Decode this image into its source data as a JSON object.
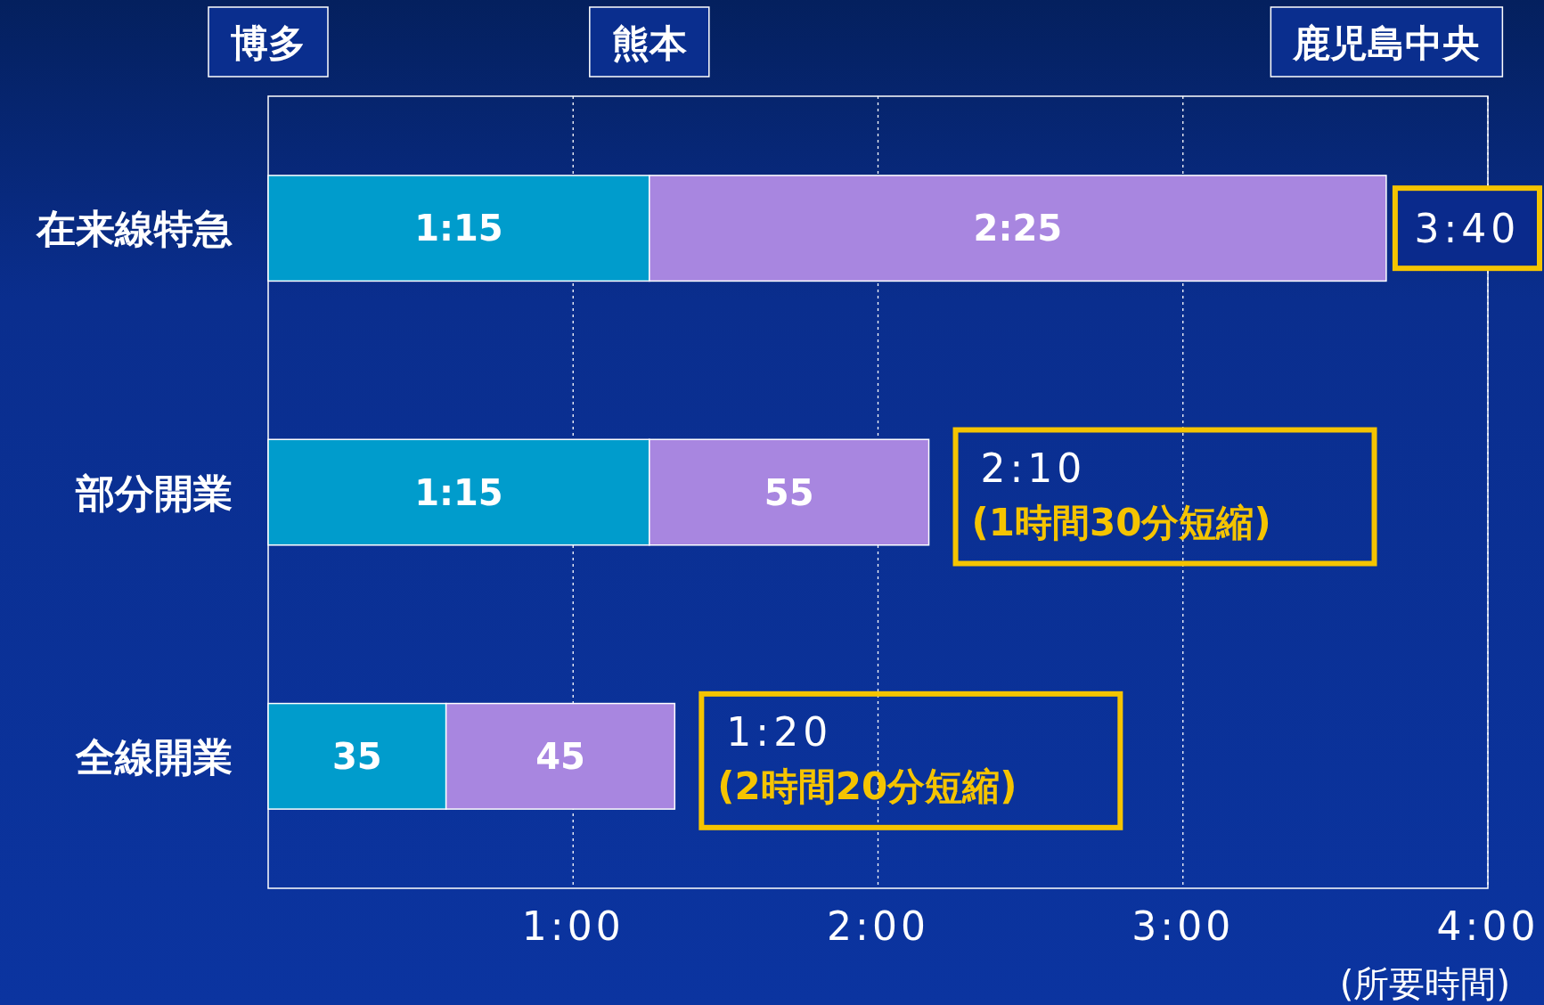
{
  "chart_data": {
    "type": "bar",
    "orientation": "horizontal",
    "stacked": true,
    "categories": [
      "在来線特急",
      "部分開業",
      "全線開業"
    ],
    "series": [
      {
        "color": "#009ccc",
        "values": [
          75,
          75,
          35
        ],
        "value_labels": [
          "1:15",
          "1:15",
          "35"
        ]
      },
      {
        "color": "#a886e0",
        "values": [
          145,
          55,
          45
        ],
        "value_labels": [
          "2:25",
          "55",
          "45"
        ]
      }
    ],
    "totals": [
      "3:40",
      "2:10\n(1時間30分短縮)",
      "1:20\n(2時間20分短縮)"
    ],
    "xlim": [
      0,
      240
    ],
    "xticks": [
      {
        "value": 60,
        "label": "1:00"
      },
      {
        "value": 120,
        "label": "2:00"
      },
      {
        "value": 180,
        "label": "3:00"
      },
      {
        "value": 240,
        "label": "4:00"
      }
    ],
    "xlabel": "(所要時間)",
    "grid": "x",
    "annotations": [
      "博多",
      "熊本",
      "鹿児島中央"
    ]
  }
}
